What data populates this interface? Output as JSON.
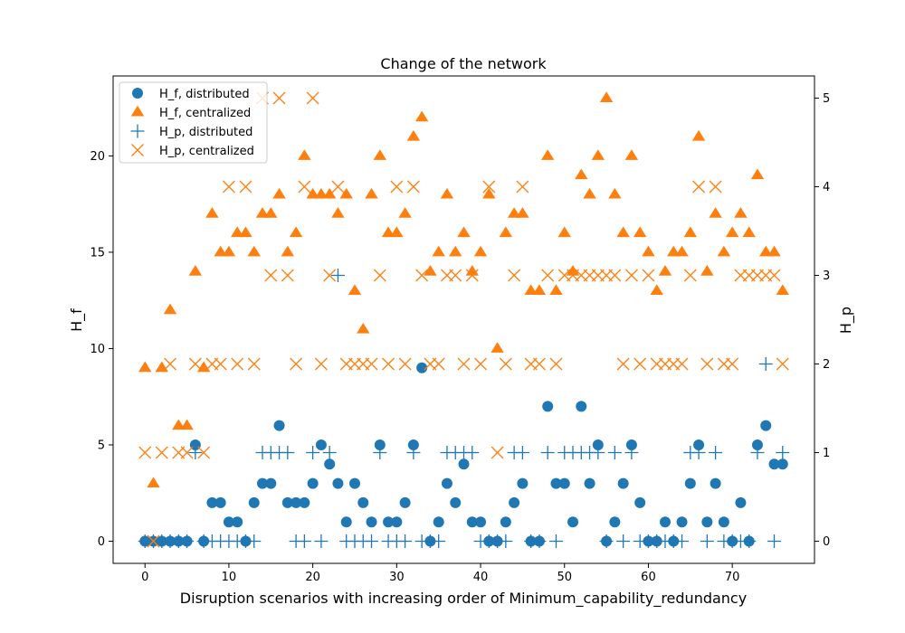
{
  "chart_data": {
    "type": "scatter",
    "title": "Change of the network",
    "xlabel": "Disruption scenarios with increasing order of Minimum_capability_redundancy",
    "ylabel_left": "H_f",
    "ylabel_right": "H_p",
    "xlim": [
      -3.8,
      79.8
    ],
    "ylim_left": [
      -1.15,
      24.15
    ],
    "ylim_right": [
      -0.25,
      5.25
    ],
    "xticks": [
      0,
      10,
      20,
      30,
      40,
      50,
      60,
      70
    ],
    "yticks_left": [
      0,
      5,
      10,
      15,
      20
    ],
    "yticks_right": [
      0,
      1,
      2,
      3,
      4,
      5
    ],
    "legend_position": "top-left",
    "grid": false,
    "colors": {
      "blue": "#1f77b4",
      "orange": "#ff7f0e"
    },
    "series": [
      {
        "name": "H_f, distributed",
        "marker": "circle",
        "color": "#1f77b4",
        "axis": "left",
        "values": [
          0,
          0,
          0,
          0,
          0,
          0,
          5,
          0,
          2,
          2,
          1,
          1,
          0,
          2,
          3,
          3,
          6,
          2,
          2,
          2,
          3,
          5,
          4,
          3,
          1,
          3,
          2,
          1,
          5,
          1,
          1,
          2,
          5,
          9,
          0,
          1,
          3,
          2,
          4,
          1,
          1,
          0,
          0,
          1,
          2,
          3,
          0,
          0,
          7,
          3,
          3,
          1,
          7,
          3,
          5,
          0,
          1,
          3,
          5,
          2,
          0,
          0,
          1,
          0,
          1,
          3,
          5,
          1,
          3,
          1,
          0,
          2,
          0,
          5,
          6,
          4,
          4
        ]
      },
      {
        "name": "H_f, centralized",
        "marker": "triangle",
        "color": "#ff7f0e",
        "axis": "left",
        "values": [
          9,
          3,
          9,
          12,
          6,
          6,
          14,
          9,
          17,
          15,
          15,
          16,
          16,
          15,
          17,
          17,
          18,
          15,
          16,
          20,
          18,
          18,
          18,
          17,
          18,
          13,
          11,
          18,
          20,
          16,
          16,
          17,
          21,
          22,
          14,
          15,
          18,
          15,
          16,
          14,
          15,
          18,
          10,
          16,
          17,
          17,
          13,
          13,
          20,
          13,
          16,
          14,
          19,
          18,
          20,
          23,
          18,
          16,
          20,
          16,
          15,
          13,
          14,
          15,
          15,
          16,
          21,
          14,
          17,
          15,
          16,
          17,
          16,
          19,
          15,
          15,
          13
        ]
      },
      {
        "name": "H_p, distributed",
        "marker": "plus",
        "color": "#1f77b4",
        "axis": "right",
        "values": [
          0,
          0,
          0,
          0,
          0,
          0,
          1,
          0,
          0,
          0,
          0,
          0,
          0,
          0,
          1,
          1,
          1,
          1,
          0,
          0,
          1,
          0,
          1,
          3,
          0,
          0,
          0,
          0,
          1,
          0,
          0,
          0,
          1,
          0,
          0,
          0,
          1,
          1,
          1,
          1,
          0,
          0,
          0,
          0,
          1,
          1,
          0,
          0,
          1,
          0,
          1,
          1,
          1,
          1,
          1,
          0,
          1,
          0,
          1,
          0,
          0,
          0,
          0,
          0,
          0,
          1,
          1,
          0,
          1,
          0,
          0,
          0,
          0,
          1,
          2,
          0,
          1
        ]
      },
      {
        "name": "H_p, centralized",
        "marker": "x",
        "color": "#ff7f0e",
        "axis": "right",
        "values": [
          1,
          0,
          1,
          2,
          1,
          1,
          2,
          1,
          2,
          2,
          4,
          2,
          4,
          2,
          5,
          3,
          5,
          3,
          2,
          4,
          5,
          2,
          3,
          4,
          2,
          2,
          2,
          2,
          3,
          2,
          4,
          2,
          4,
          3,
          2,
          2,
          3,
          3,
          2,
          3,
          2,
          4,
          1,
          2,
          3,
          4,
          2,
          2,
          3,
          2,
          3,
          3,
          3,
          3,
          3,
          3,
          3,
          2,
          3,
          2,
          3,
          2,
          2,
          2,
          2,
          3,
          4,
          2,
          4,
          2,
          2,
          3,
          3,
          3,
          3,
          3,
          2
        ]
      }
    ]
  }
}
